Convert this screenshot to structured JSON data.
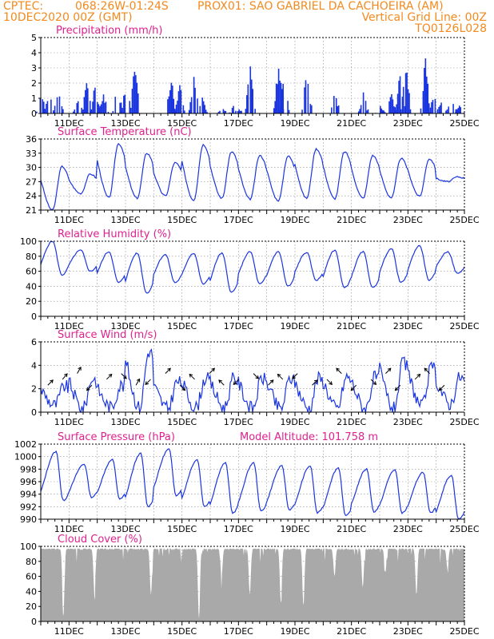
{
  "header": {
    "line1_left": "CPTEC:",
    "line1_coords": "068:26W-01:24S",
    "line1_station": "PROX01: SAO GABRIEL DA CACHOEIRA (AM)",
    "line2_left": "10DEC2020 00Z (GMT)",
    "line2_right": "Vertical Grid Line: 00Z",
    "line3_right": "TQ0126L028"
  },
  "colors": {
    "header": "#f28a1e",
    "title": "#e0208f",
    "series": "#1a35e0",
    "cloud": "#a9a9a9"
  },
  "x_labels": [
    "11DEC",
    "13DEC",
    "15DEC",
    "17DEC",
    "19DEC",
    "21DEC",
    "23DEC",
    "25DEC"
  ],
  "chart_data": [
    {
      "type": "bar",
      "title": "Precipitation (mm/h)",
      "x": "hourly from 10DEC2020 00Z to 25DEC2020 00Z",
      "ylim": [
        0,
        5
      ],
      "yticks": [
        0,
        1,
        2,
        3,
        4,
        5
      ],
      "events": [
        {
          "day": 10.0,
          "peak": 1.5
        },
        {
          "day": 10.3,
          "peak": 1.8
        },
        {
          "day": 10.6,
          "peak": 1.6
        },
        {
          "day": 11.3,
          "peak": 1.0
        },
        {
          "day": 11.6,
          "peak": 2.3
        },
        {
          "day": 11.9,
          "peak": 1.9
        },
        {
          "day": 12.2,
          "peak": 1.3
        },
        {
          "day": 12.7,
          "peak": 2.0
        },
        {
          "day": 13.0,
          "peak": 2.2
        },
        {
          "day": 13.3,
          "peak": 3.5
        },
        {
          "day": 14.6,
          "peak": 2.4
        },
        {
          "day": 14.9,
          "peak": 2.3
        },
        {
          "day": 15.4,
          "peak": 2.8
        },
        {
          "day": 15.7,
          "peak": 1.1
        },
        {
          "day": 16.4,
          "peak": 0.4
        },
        {
          "day": 16.8,
          "peak": 0.5
        },
        {
          "day": 17.0,
          "peak": 0.3
        },
        {
          "day": 17.4,
          "peak": 3.8
        },
        {
          "day": 18.4,
          "peak": 3.5
        },
        {
          "day": 18.6,
          "peak": 2.8
        },
        {
          "day": 19.4,
          "peak": 3.1
        },
        {
          "day": 20.4,
          "peak": 1.5
        },
        {
          "day": 21.4,
          "peak": 1.7
        },
        {
          "day": 22.0,
          "peak": 0.5
        },
        {
          "day": 22.4,
          "peak": 1.4
        },
        {
          "day": 22.7,
          "peak": 2.8
        },
        {
          "day": 22.9,
          "peak": 3.4
        },
        {
          "day": 23.6,
          "peak": 4.1
        },
        {
          "day": 23.9,
          "peak": 1.3
        },
        {
          "day": 24.2,
          "peak": 1.3
        },
        {
          "day": 24.5,
          "peak": 1.5
        },
        {
          "day": 24.8,
          "peak": 0.7
        }
      ]
    },
    {
      "type": "line",
      "title": "Surface Temperature (nC)",
      "ylim": [
        21,
        36
      ],
      "yticks": [
        21,
        24,
        27,
        30,
        33,
        36
      ],
      "day_max": [
        30.2,
        28.6,
        35.0,
        33.0,
        31.0,
        34.8,
        33.3,
        32.5,
        32.4,
        33.9,
        33.3,
        32.5,
        31.9,
        31.8,
        28.0
      ],
      "day_min": [
        21.0,
        24.5,
        23.6,
        23.5,
        24.0,
        23.1,
        23.5,
        23.3,
        23.0,
        23.5,
        23.4,
        23.5,
        23.6,
        23.9,
        27.0
      ]
    },
    {
      "type": "line",
      "title": "Relative Humidity (%)",
      "ylim": [
        0,
        100
      ],
      "yticks": [
        0,
        20,
        40,
        60,
        80,
        100
      ],
      "day_max": [
        100,
        88,
        86,
        84,
        82,
        84,
        84,
        86,
        86,
        85,
        88,
        86,
        90,
        94,
        86
      ],
      "day_min": [
        55,
        60,
        45,
        31,
        45,
        43,
        32,
        43,
        40,
        48,
        38,
        38,
        45,
        48,
        57
      ]
    },
    {
      "type": "line",
      "title": "Surface Wind (m/s)",
      "ylim": [
        0,
        6
      ],
      "yticks": [
        0,
        2,
        4,
        6
      ],
      "day_max": [
        2.2,
        2.9,
        2.3,
        5.2,
        2.6,
        2.9,
        2.9,
        2.9,
        2.9,
        2.9,
        3.0,
        3.0,
        4.2,
        3.8,
        3.0
      ],
      "day_min": [
        0.6,
        0.3,
        0.4,
        0.4,
        0.3,
        0.4,
        0.4,
        0.3,
        0.3,
        0.3,
        0.3,
        0.3,
        0.3,
        0.5,
        0.7
      ],
      "arrow_dirs_deg": [
        45,
        40,
        30,
        225,
        45,
        135,
        30,
        225,
        45,
        135,
        315,
        45,
        315,
        225,
        135,
        45,
        315,
        225,
        45,
        135,
        315,
        225,
        135,
        45,
        225,
        45,
        315,
        225
      ]
    },
    {
      "type": "line",
      "title": "Surface Pressure (hPa)",
      "annotation": "Model Altitude: 101.758 m",
      "ylim": [
        990,
        1002
      ],
      "yticks": [
        990,
        992,
        994,
        996,
        998,
        1000,
        1002
      ],
      "day_max": [
        1000.8,
        998.8,
        999.5,
        1000.5,
        1001.2,
        999.5,
        999.0,
        999.0,
        998.5,
        998.5,
        998.2,
        998.0,
        997.9,
        997.5,
        997.0
      ],
      "day_min": [
        993.0,
        993.5,
        993.2,
        992.0,
        993.8,
        992.0,
        991.0,
        991.3,
        991.5,
        991.0,
        990.5,
        991.2,
        991.0,
        991.0,
        990.0
      ]
    },
    {
      "type": "area",
      "title": "Cloud Cover (%)",
      "ylim": [
        0,
        100
      ],
      "yticks": [
        0,
        20,
        40,
        60,
        80,
        100
      ],
      "typical": 97,
      "dips": [
        {
          "day": 10.8,
          "min": 5
        },
        {
          "day": 11.9,
          "min": 40
        },
        {
          "day": 13.9,
          "min": 35
        },
        {
          "day": 15.6,
          "min": 3
        },
        {
          "day": 16.4,
          "min": 60
        },
        {
          "day": 17.4,
          "min": 35
        },
        {
          "day": 18.5,
          "min": 25
        },
        {
          "day": 19.3,
          "min": 20
        },
        {
          "day": 20.4,
          "min": 60
        },
        {
          "day": 21.4,
          "min": 45
        },
        {
          "day": 22.2,
          "min": 65
        },
        {
          "day": 23.3,
          "min": 35
        },
        {
          "day": 24.4,
          "min": 70
        }
      ]
    }
  ]
}
